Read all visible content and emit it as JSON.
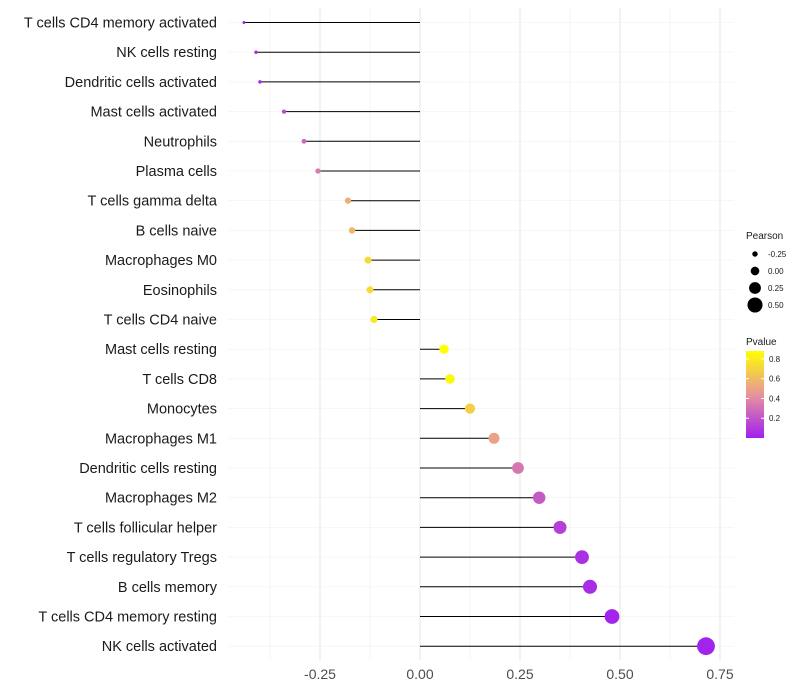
{
  "chart_data": {
    "type": "lollipop",
    "title": "",
    "xlabel": "",
    "ylabel": "",
    "xlim": [
      -0.5,
      0.775
    ],
    "grid": true,
    "xticks": [
      -0.25,
      0.0,
      0.25,
      0.5,
      0.75
    ],
    "xtick_labels": [
      "-0.25",
      "0.00",
      "0.25",
      "0.50",
      "0.75"
    ],
    "categories": [
      "T cells CD4 memory activated",
      "NK cells resting",
      "Dendritic cells activated",
      "Mast cells activated",
      "Neutrophils",
      "Plasma cells",
      "T cells gamma delta",
      "B cells naive",
      "Macrophages M0",
      "Eosinophils",
      "T cells CD4 naive",
      "Mast cells resting",
      "T cells CD8",
      "Monocytes",
      "Macrophages M1",
      "Dendritic cells resting",
      "Macrophages M2",
      "T cells follicular helper",
      "T cells regulatory  Tregs",
      "B cells memory",
      "T cells CD4 memory resting",
      "NK cells activated"
    ],
    "pearson": [
      -0.44,
      -0.41,
      -0.4,
      -0.34,
      -0.29,
      -0.255,
      -0.18,
      -0.17,
      -0.13,
      -0.125,
      -0.115,
      0.06,
      0.075,
      0.125,
      0.185,
      0.245,
      0.298,
      0.35,
      0.405,
      0.425,
      0.48,
      0.715
    ],
    "pvalue": [
      0.02,
      0.04,
      0.05,
      0.15,
      0.28,
      0.35,
      0.55,
      0.58,
      0.72,
      0.73,
      0.78,
      0.88,
      0.85,
      0.68,
      0.5,
      0.33,
      0.22,
      0.12,
      0.06,
      0.05,
      0.02,
      0.01
    ],
    "legend_size": {
      "title": "Pearson",
      "labels": [
        "-0.25",
        "0.00",
        "0.25",
        "0.50"
      ],
      "values": [
        -0.25,
        0.0,
        0.25,
        0.5
      ]
    },
    "legend_color": {
      "title": "Pvalue",
      "labels": [
        "0.8",
        "0.6",
        "0.4",
        "0.2"
      ],
      "values": [
        0.8,
        0.6,
        0.4,
        0.2
      ],
      "range": [
        0.0,
        0.88
      ],
      "low_color": "#a020f0",
      "mid_color": "#e8949c",
      "high_color": "#ffff00"
    },
    "legend_placement": "right"
  }
}
